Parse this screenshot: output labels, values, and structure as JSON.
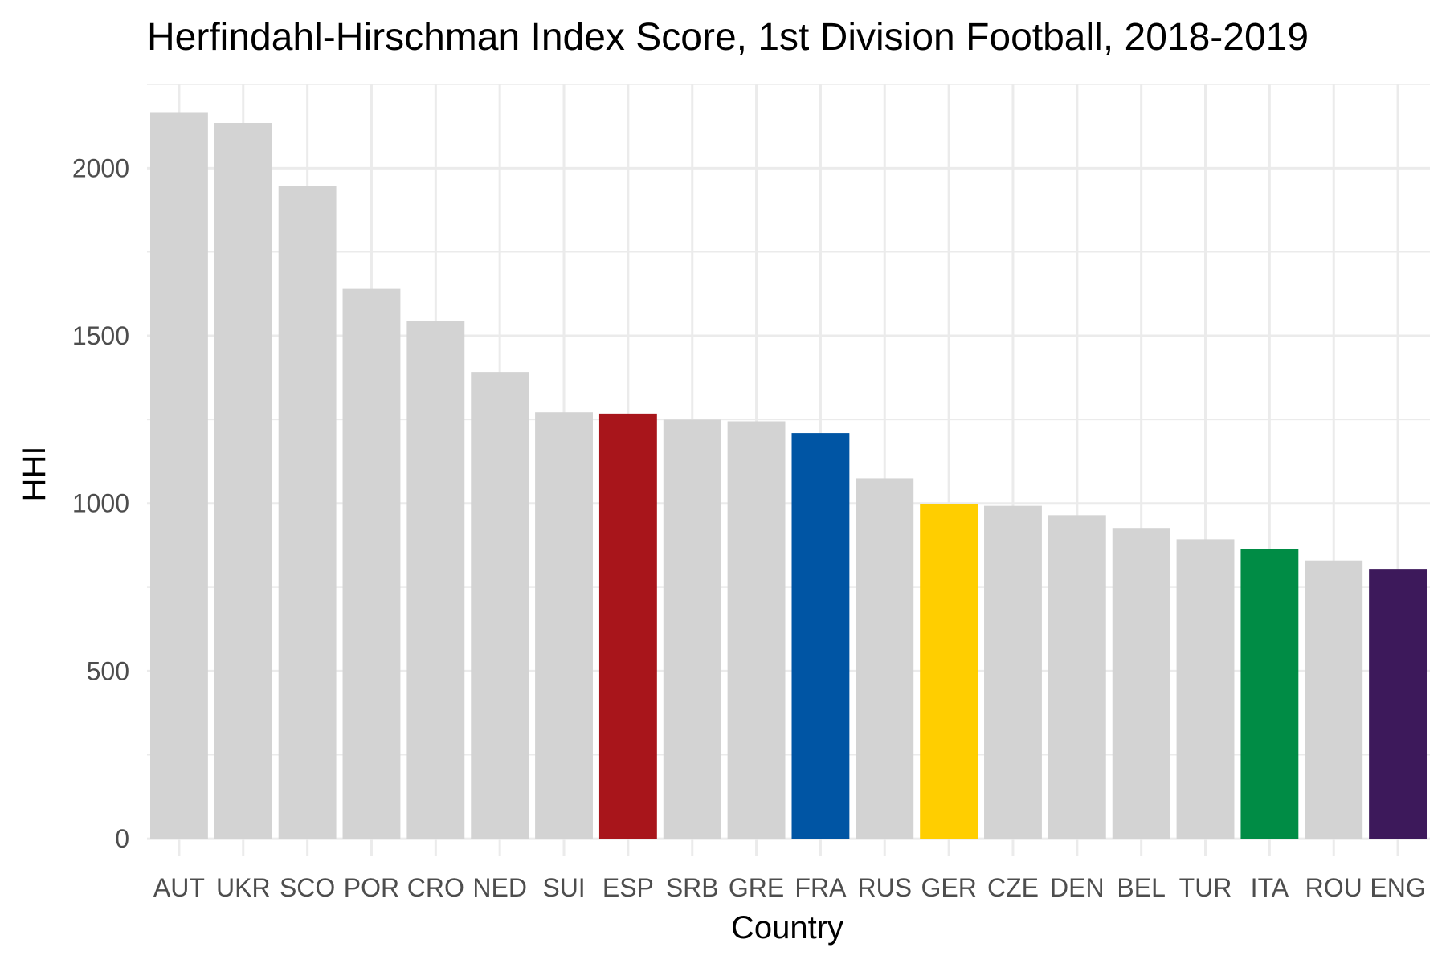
{
  "chart_data": {
    "type": "bar",
    "title": "Herfindahl-Hirschman Index Score, 1st Division Football, 2018-2019",
    "xlabel": "Country",
    "ylabel": "HHI",
    "categories": [
      "AUT",
      "UKR",
      "SCO",
      "POR",
      "CRO",
      "NED",
      "SUI",
      "ESP",
      "SRB",
      "GRE",
      "FRA",
      "RUS",
      "GER",
      "CZE",
      "DEN",
      "BEL",
      "TUR",
      "ITA",
      "ROU",
      "ENG"
    ],
    "values": [
      2165,
      2135,
      1948,
      1640,
      1545,
      1392,
      1272,
      1268,
      1250,
      1245,
      1210,
      1075,
      998,
      993,
      965,
      927,
      893,
      863,
      830,
      805
    ],
    "colors": [
      "#d3d3d3",
      "#d3d3d3",
      "#d3d3d3",
      "#d3d3d3",
      "#d3d3d3",
      "#d3d3d3",
      "#d3d3d3",
      "#a8151b",
      "#d3d3d3",
      "#d3d3d3",
      "#0055a4",
      "#d3d3d3",
      "#ffce00",
      "#d3d3d3",
      "#d3d3d3",
      "#d3d3d3",
      "#d3d3d3",
      "#008c45",
      "#d3d3d3",
      "#3d195b"
    ],
    "yticks": [
      0,
      500,
      1000,
      1500,
      2000
    ],
    "ylim": [
      -50,
      2250
    ],
    "grid": true,
    "legend": "none"
  }
}
